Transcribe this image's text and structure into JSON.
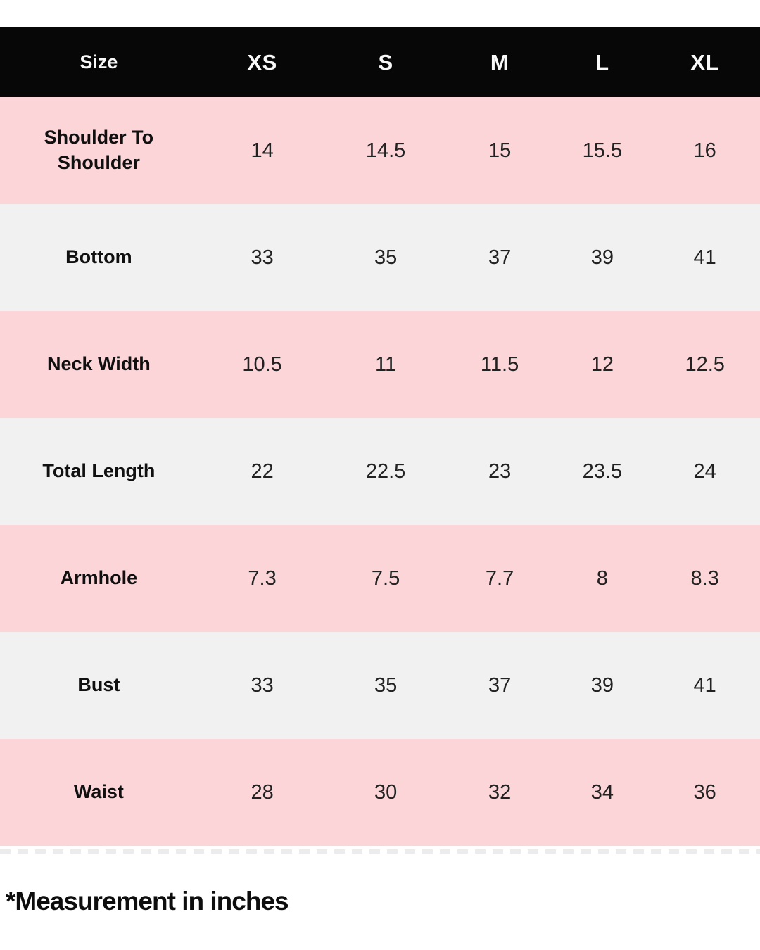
{
  "chart_data": {
    "type": "table",
    "columns": [
      "Size",
      "XS",
      "S",
      "M",
      "L",
      "XL"
    ],
    "rows": [
      {
        "label": "Shoulder To Shoulder",
        "values": [
          14,
          14.5,
          15,
          15.5,
          16
        ]
      },
      {
        "label": "Bottom",
        "values": [
          33,
          35,
          37,
          39,
          41
        ]
      },
      {
        "label": "Neck Width",
        "values": [
          10.5,
          11,
          11.5,
          12,
          12.5
        ]
      },
      {
        "label": "Total Length",
        "values": [
          22,
          22.5,
          23,
          23.5,
          24
        ]
      },
      {
        "label": "Armhole",
        "values": [
          7.3,
          7.5,
          7.7,
          8,
          8.3
        ]
      },
      {
        "label": "Bust",
        "values": [
          33,
          35,
          37,
          39,
          41
        ]
      },
      {
        "label": "Waist",
        "values": [
          28,
          30,
          32,
          34,
          36
        ]
      }
    ],
    "footnote": "*Measurement in inches",
    "layout_hints": {
      "row_striping": [
        "pink",
        "gray",
        "pink",
        "gray",
        "pink",
        "gray",
        "pink"
      ]
    }
  },
  "style_hints": {
    "header_bg": "#070707",
    "header_text": "#F9F9F9",
    "row_pink": "#FBD5D8",
    "row_gray": "#F2F1F1",
    "body_text": "#222222",
    "background": "#FFFFFF"
  }
}
